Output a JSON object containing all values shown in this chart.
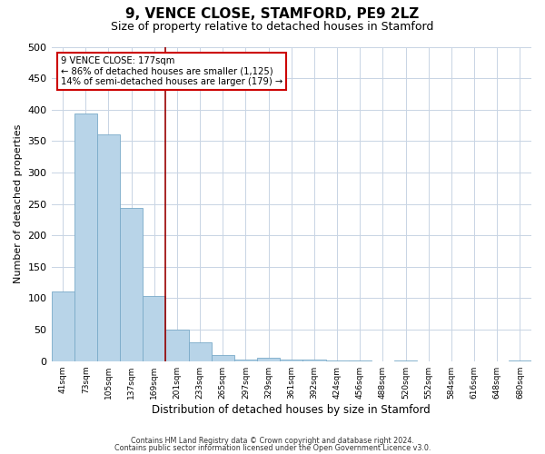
{
  "title": "9, VENCE CLOSE, STAMFORD, PE9 2LZ",
  "subtitle": "Size of property relative to detached houses in Stamford",
  "xlabel": "Distribution of detached houses by size in Stamford",
  "ylabel": "Number of detached properties",
  "bar_labels": [
    "41sqm",
    "73sqm",
    "105sqm",
    "137sqm",
    "169sqm",
    "201sqm",
    "233sqm",
    "265sqm",
    "297sqm",
    "329sqm",
    "361sqm",
    "392sqm",
    "424sqm",
    "456sqm",
    "488sqm",
    "520sqm",
    "552sqm",
    "584sqm",
    "616sqm",
    "648sqm",
    "680sqm"
  ],
  "bar_values": [
    111,
    394,
    360,
    244,
    104,
    50,
    30,
    9,
    2,
    6,
    2,
    2,
    1,
    1,
    0,
    1,
    0,
    0,
    0,
    0,
    1
  ],
  "bar_color": "#b8d4e8",
  "bar_edge_color": "#7aaac8",
  "vline_x_index": 4.5,
  "vline_color": "#990000",
  "annotation_title": "9 VENCE CLOSE: 177sqm",
  "annotation_line1": "← 86% of detached houses are smaller (1,125)",
  "annotation_line2": "14% of semi-detached houses are larger (179) →",
  "annotation_box_color": "#ffffff",
  "annotation_box_edge": "#cc0000",
  "ylim": [
    0,
    500
  ],
  "yticks": [
    0,
    50,
    100,
    150,
    200,
    250,
    300,
    350,
    400,
    450,
    500
  ],
  "footnote1": "Contains HM Land Registry data © Crown copyright and database right 2024.",
  "footnote2": "Contains public sector information licensed under the Open Government Licence v3.0.",
  "background_color": "#ffffff",
  "grid_color": "#c8d4e4",
  "title_fontsize": 11,
  "subtitle_fontsize": 9
}
